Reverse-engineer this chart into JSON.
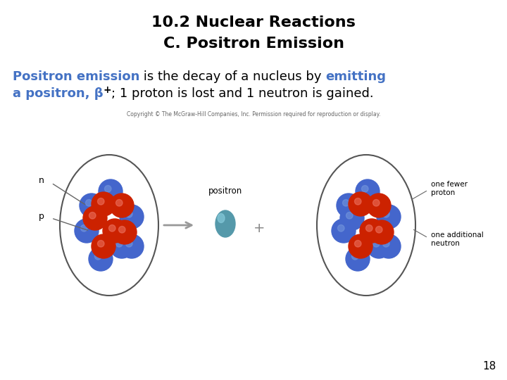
{
  "title_line1": "10.2 Nuclear Reactions",
  "title_line2": "C. Positron Emission",
  "title_color": "#000000",
  "title_fontsize": 16,
  "body_fontsize": 13,
  "copyright_text": "Copyright © The McGraw-Hill Companies, Inc. Permission required for reproduction or display.",
  "copyright_fontsize": 5.5,
  "page_number": "18",
  "page_number_fontsize": 11,
  "background_color": "#ffffff",
  "proton_color": "#CC2200",
  "neutron_color": "#4466CC",
  "positron_color": "#5599AA",
  "blue_text": "#4472C4",
  "black_text": "#000000",
  "grey_arrow": "#888888",
  "label_color": "#333333"
}
